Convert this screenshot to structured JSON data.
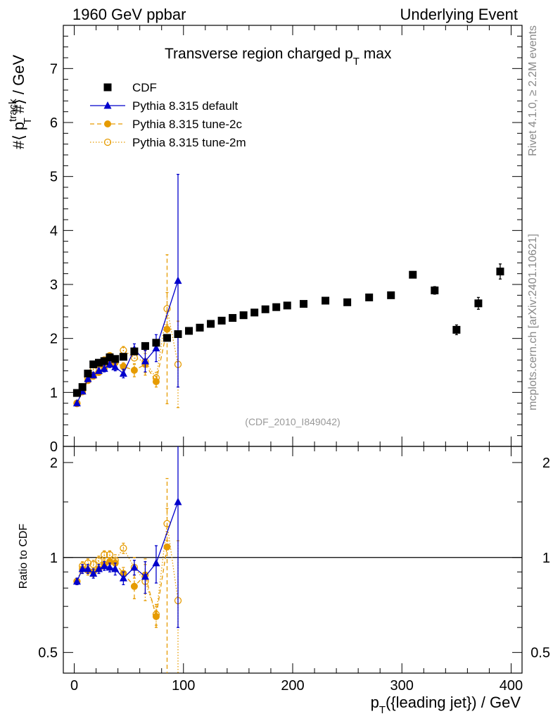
{
  "header": {
    "left": "1960 GeV ppbar",
    "right": "Underlying Event",
    "side_top": "Rivet 4.1.0, ≥ 2.2M events",
    "side_bottom": "mcplots.cern.ch [arXiv:2401.10621]"
  },
  "chart_data": {
    "type": "scatter",
    "title_prefix": "Transverse region charged p",
    "title_sub": "T",
    "title_suffix": " max",
    "analysis_tag": "(CDF_2010_I849042)",
    "ylabel_main": "#⟨ p",
    "ylabel_sup": "track",
    "ylabel_sub": "T",
    "ylabel_tail": " #⟩ / GeV",
    "xlabel_prefix": "p",
    "xlabel_sub": "T",
    "xlabel_tail": "({leading jet}) / GeV",
    "ratio_ylabel": "Ratio to CDF",
    "xlim": [
      -10,
      410
    ],
    "ylim_main": [
      0,
      7.8
    ],
    "ylim_ratio": [
      0.43,
      2.25
    ],
    "xticks": [
      0,
      100,
      200,
      300,
      400
    ],
    "xtick_labels": [
      "0",
      "100",
      "200",
      "300",
      "400"
    ],
    "yticks_main": [
      0,
      1,
      2,
      3,
      4,
      5,
      6,
      7
    ],
    "ytick_labels_main": [
      "0",
      "1",
      "2",
      "3",
      "4",
      "5",
      "6",
      "7"
    ],
    "yticks_ratio": [
      0.5,
      1,
      2
    ],
    "ytick_labels_ratio": [
      "0.5",
      "1",
      "2"
    ],
    "colors": {
      "data": "#000000",
      "default": "#0000cc",
      "tune2c": "#e69b00",
      "tune2m": "#e69b00"
    },
    "series": [
      {
        "name": "CDF",
        "style": "data",
        "x": [
          2.5,
          7.5,
          12.5,
          17.5,
          22.5,
          27.5,
          32.5,
          37.5,
          45,
          55,
          65,
          75,
          85,
          95,
          105,
          115,
          125,
          135,
          145,
          155,
          165,
          175,
          185,
          195,
          210,
          230,
          250,
          270,
          290,
          310,
          330,
          350,
          370,
          390
        ],
        "y": [
          0.99,
          1.1,
          1.35,
          1.52,
          1.55,
          1.58,
          1.65,
          1.62,
          1.66,
          1.76,
          1.86,
          1.92,
          2.01,
          2.08,
          2.14,
          2.2,
          2.27,
          2.33,
          2.38,
          2.43,
          2.48,
          2.54,
          2.58,
          2.61,
          2.64,
          2.7,
          2.67,
          2.76,
          2.8,
          3.18,
          2.89,
          2.16,
          2.65,
          3.24
        ],
        "err": [
          0.02,
          0.02,
          0.02,
          0.02,
          0.02,
          0.02,
          0.02,
          0.02,
          0.02,
          0.02,
          0.02,
          0.02,
          0.02,
          0.02,
          0.02,
          0.02,
          0.02,
          0.02,
          0.02,
          0.02,
          0.02,
          0.02,
          0.02,
          0.02,
          0.03,
          0.03,
          0.03,
          0.04,
          0.05,
          0.06,
          0.07,
          0.09,
          0.11,
          0.14
        ]
      },
      {
        "name": "Pythia 8.315 default",
        "style": "default",
        "x": [
          2.5,
          7.5,
          12.5,
          17.5,
          22.5,
          27.5,
          32.5,
          37.5,
          45,
          55,
          65,
          75,
          95
        ],
        "y": [
          0.8,
          1.02,
          1.25,
          1.32,
          1.4,
          1.44,
          1.52,
          1.47,
          1.35,
          1.8,
          1.58,
          1.82,
          3.07
        ],
        "err": [
          0.03,
          0.04,
          0.05,
          0.05,
          0.05,
          0.06,
          0.06,
          0.07,
          0.08,
          0.1,
          0.2,
          0.25,
          1.97
        ],
        "ratio": [
          0.84,
          0.92,
          0.92,
          0.89,
          0.92,
          0.94,
          0.93,
          0.92,
          0.86,
          0.93,
          0.87,
          0.96,
          1.5
        ],
        "ratio_err": [
          0.02,
          0.03,
          0.03,
          0.03,
          0.03,
          0.03,
          0.03,
          0.04,
          0.04,
          0.05,
          0.1,
          0.13,
          0.9
        ]
      },
      {
        "name": "Pythia 8.315 tune-2c",
        "style": "tune2c",
        "x": [
          2.5,
          7.5,
          12.5,
          17.5,
          22.5,
          27.5,
          32.5,
          37.5,
          45,
          55,
          65,
          75,
          85
        ],
        "y": [
          0.79,
          1.01,
          1.22,
          1.3,
          1.37,
          1.45,
          1.52,
          1.55,
          1.48,
          1.41,
          1.52,
          1.2,
          2.17
        ],
        "err": [
          0.03,
          0.03,
          0.04,
          0.04,
          0.04,
          0.05,
          0.05,
          0.06,
          0.07,
          0.12,
          0.2,
          0.1,
          1.38
        ],
        "ratio": [
          0.84,
          0.92,
          0.91,
          0.9,
          0.92,
          0.95,
          0.97,
          0.96,
          0.89,
          0.81,
          0.88,
          0.65,
          1.08
        ],
        "ratio_err": [
          0.02,
          0.03,
          0.03,
          0.03,
          0.03,
          0.03,
          0.03,
          0.03,
          0.04,
          0.07,
          0.11,
          0.05,
          0.7
        ]
      },
      {
        "name": "Pythia 8.315 tune-2m",
        "style": "tune2m",
        "x": [
          2.5,
          7.5,
          12.5,
          17.5,
          22.5,
          27.5,
          32.5,
          37.5,
          45,
          55,
          65,
          75,
          85,
          95
        ],
        "y": [
          0.8,
          1.04,
          1.27,
          1.42,
          1.52,
          1.6,
          1.68,
          1.59,
          1.78,
          1.64,
          1.57,
          1.27,
          2.55,
          1.52
        ],
        "err": [
          0.03,
          0.03,
          0.04,
          0.05,
          0.05,
          0.05,
          0.05,
          0.07,
          0.07,
          0.12,
          0.2,
          0.1,
          0.3,
          0.8
        ],
        "ratio": [
          0.84,
          0.94,
          0.96,
          0.95,
          0.98,
          1.02,
          1.02,
          0.98,
          1.07,
          0.93,
          0.84,
          0.66,
          1.28,
          0.73
        ],
        "ratio_err": [
          0.02,
          0.03,
          0.03,
          0.03,
          0.03,
          0.03,
          0.03,
          0.04,
          0.04,
          0.07,
          0.11,
          0.05,
          0.15,
          0.4
        ]
      }
    ],
    "legend": [
      "CDF",
      "Pythia 8.315 default",
      "Pythia 8.315 tune-2c",
      "Pythia 8.315 tune-2m"
    ],
    "legend_position": "top-left"
  }
}
